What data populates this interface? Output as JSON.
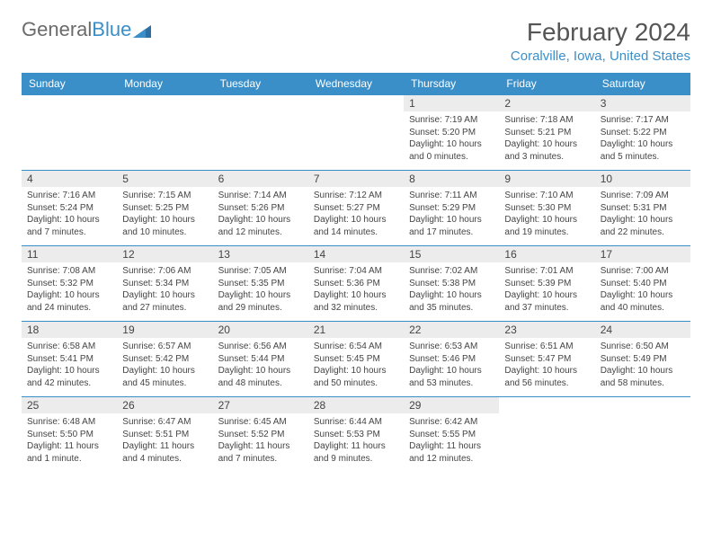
{
  "logo": {
    "part1": "General",
    "part2": "Blue"
  },
  "title": "February 2024",
  "location": "Coralville, Iowa, United States",
  "day_headers": [
    "Sunday",
    "Monday",
    "Tuesday",
    "Wednesday",
    "Thursday",
    "Friday",
    "Saturday"
  ],
  "colors": {
    "accent": "#3b8fc9",
    "header_text": "#ffffff",
    "daynum_bg": "#ececec",
    "body_text": "#444444",
    "logo_gray": "#6b6b6b",
    "page_bg": "#ffffff"
  },
  "fonts": {
    "title_size_pt": 21,
    "location_size_pt": 11,
    "header_size_pt": 9,
    "daynum_size_pt": 9,
    "detail_size_pt": 7.5
  },
  "first_weekday_index": 4,
  "days": [
    {
      "n": "1",
      "sunrise": "7:19 AM",
      "sunset": "5:20 PM",
      "daylight": "10 hours and 0 minutes."
    },
    {
      "n": "2",
      "sunrise": "7:18 AM",
      "sunset": "5:21 PM",
      "daylight": "10 hours and 3 minutes."
    },
    {
      "n": "3",
      "sunrise": "7:17 AM",
      "sunset": "5:22 PM",
      "daylight": "10 hours and 5 minutes."
    },
    {
      "n": "4",
      "sunrise": "7:16 AM",
      "sunset": "5:24 PM",
      "daylight": "10 hours and 7 minutes."
    },
    {
      "n": "5",
      "sunrise": "7:15 AM",
      "sunset": "5:25 PM",
      "daylight": "10 hours and 10 minutes."
    },
    {
      "n": "6",
      "sunrise": "7:14 AM",
      "sunset": "5:26 PM",
      "daylight": "10 hours and 12 minutes."
    },
    {
      "n": "7",
      "sunrise": "7:12 AM",
      "sunset": "5:27 PM",
      "daylight": "10 hours and 14 minutes."
    },
    {
      "n": "8",
      "sunrise": "7:11 AM",
      "sunset": "5:29 PM",
      "daylight": "10 hours and 17 minutes."
    },
    {
      "n": "9",
      "sunrise": "7:10 AM",
      "sunset": "5:30 PM",
      "daylight": "10 hours and 19 minutes."
    },
    {
      "n": "10",
      "sunrise": "7:09 AM",
      "sunset": "5:31 PM",
      "daylight": "10 hours and 22 minutes."
    },
    {
      "n": "11",
      "sunrise": "7:08 AM",
      "sunset": "5:32 PM",
      "daylight": "10 hours and 24 minutes."
    },
    {
      "n": "12",
      "sunrise": "7:06 AM",
      "sunset": "5:34 PM",
      "daylight": "10 hours and 27 minutes."
    },
    {
      "n": "13",
      "sunrise": "7:05 AM",
      "sunset": "5:35 PM",
      "daylight": "10 hours and 29 minutes."
    },
    {
      "n": "14",
      "sunrise": "7:04 AM",
      "sunset": "5:36 PM",
      "daylight": "10 hours and 32 minutes."
    },
    {
      "n": "15",
      "sunrise": "7:02 AM",
      "sunset": "5:38 PM",
      "daylight": "10 hours and 35 minutes."
    },
    {
      "n": "16",
      "sunrise": "7:01 AM",
      "sunset": "5:39 PM",
      "daylight": "10 hours and 37 minutes."
    },
    {
      "n": "17",
      "sunrise": "7:00 AM",
      "sunset": "5:40 PM",
      "daylight": "10 hours and 40 minutes."
    },
    {
      "n": "18",
      "sunrise": "6:58 AM",
      "sunset": "5:41 PM",
      "daylight": "10 hours and 42 minutes."
    },
    {
      "n": "19",
      "sunrise": "6:57 AM",
      "sunset": "5:42 PM",
      "daylight": "10 hours and 45 minutes."
    },
    {
      "n": "20",
      "sunrise": "6:56 AM",
      "sunset": "5:44 PM",
      "daylight": "10 hours and 48 minutes."
    },
    {
      "n": "21",
      "sunrise": "6:54 AM",
      "sunset": "5:45 PM",
      "daylight": "10 hours and 50 minutes."
    },
    {
      "n": "22",
      "sunrise": "6:53 AM",
      "sunset": "5:46 PM",
      "daylight": "10 hours and 53 minutes."
    },
    {
      "n": "23",
      "sunrise": "6:51 AM",
      "sunset": "5:47 PM",
      "daylight": "10 hours and 56 minutes."
    },
    {
      "n": "24",
      "sunrise": "6:50 AM",
      "sunset": "5:49 PM",
      "daylight": "10 hours and 58 minutes."
    },
    {
      "n": "25",
      "sunrise": "6:48 AM",
      "sunset": "5:50 PM",
      "daylight": "11 hours and 1 minute."
    },
    {
      "n": "26",
      "sunrise": "6:47 AM",
      "sunset": "5:51 PM",
      "daylight": "11 hours and 4 minutes."
    },
    {
      "n": "27",
      "sunrise": "6:45 AM",
      "sunset": "5:52 PM",
      "daylight": "11 hours and 7 minutes."
    },
    {
      "n": "28",
      "sunrise": "6:44 AM",
      "sunset": "5:53 PM",
      "daylight": "11 hours and 9 minutes."
    },
    {
      "n": "29",
      "sunrise": "6:42 AM",
      "sunset": "5:55 PM",
      "daylight": "11 hours and 12 minutes."
    }
  ],
  "labels": {
    "sunrise": "Sunrise:",
    "sunset": "Sunset:",
    "daylight": "Daylight:"
  }
}
